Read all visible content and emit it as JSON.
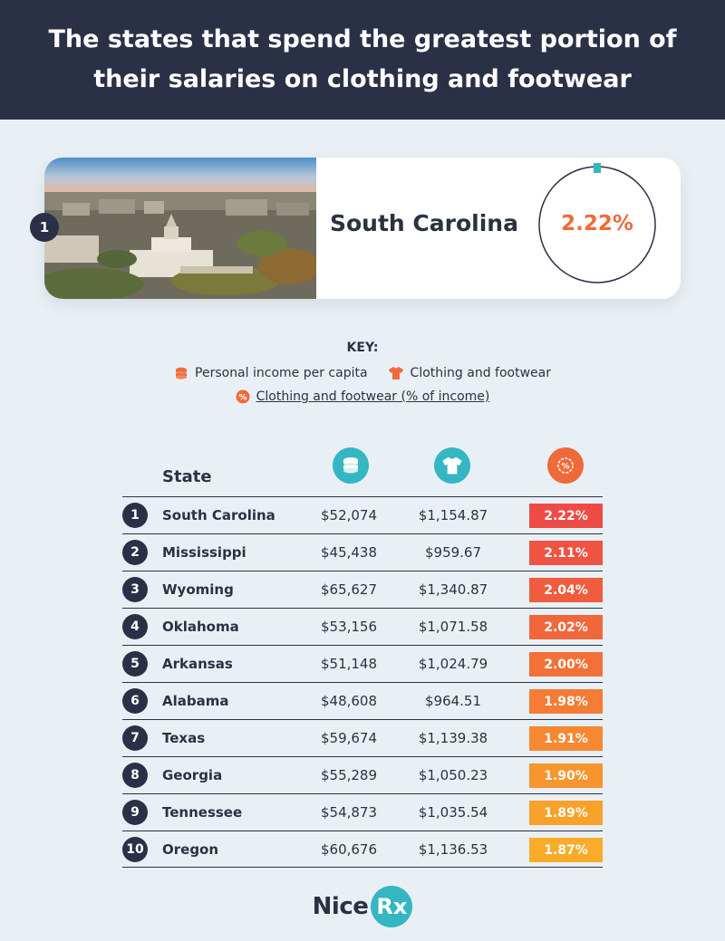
{
  "title": "The states that spend the greatest portion of their salaries on clothing and footwear",
  "feature": {
    "rank": "1",
    "state": "South Carolina",
    "percent_label": "2.22%",
    "percent_value": 2.22
  },
  "key": {
    "title": "KEY:",
    "income": "Personal income per capita",
    "clothing": "Clothing and footwear",
    "percent": "Clothing and footwear (% of income)"
  },
  "columns": {
    "state": "State"
  },
  "colors": {
    "navy": "#2a3147",
    "teal": "#34b6c3",
    "orange": "#ef6a3a"
  },
  "chart_data": {
    "type": "table",
    "columns": [
      "State",
      "Personal income per capita",
      "Clothing and footwear",
      "Clothing and footwear (% of income)"
    ],
    "rows": [
      {
        "rank": "1",
        "state": "South Carolina",
        "income": "$52,074",
        "clothing": "$1,154.87",
        "percent": "2.22%",
        "color": "#ee4b47"
      },
      {
        "rank": "2",
        "state": "Mississippi",
        "income": "$45,438",
        "clothing": "$959.67",
        "percent": "2.11%",
        "color": "#ef5343"
      },
      {
        "rank": "3",
        "state": "Wyoming",
        "income": "$65,627",
        "clothing": "$1,340.87",
        "percent": "2.04%",
        "color": "#f05c3f"
      },
      {
        "rank": "4",
        "state": "Oklahoma",
        "income": "$53,156",
        "clothing": "$1,071.58",
        "percent": "2.02%",
        "color": "#f2663c"
      },
      {
        "rank": "5",
        "state": "Arkansas",
        "income": "$51,148",
        "clothing": "$1,024.79",
        "percent": "2.00%",
        "color": "#f37138"
      },
      {
        "rank": "6",
        "state": "Alabama",
        "income": "$48,608",
        "clothing": "$964.51",
        "percent": "1.98%",
        "color": "#f47c35"
      },
      {
        "rank": "7",
        "state": "Texas",
        "income": "$59,674",
        "clothing": "$1,139.38",
        "percent": "1.91%",
        "color": "#f68832"
      },
      {
        "rank": "8",
        "state": "Georgia",
        "income": "$55,289",
        "clothing": "$1,050.23",
        "percent": "1.90%",
        "color": "#f7952e"
      },
      {
        "rank": "9",
        "state": "Tennessee",
        "income": "$54,873",
        "clothing": "$1,035.54",
        "percent": "1.89%",
        "color": "#f8a12b"
      },
      {
        "rank": "10",
        "state": "Oregon",
        "income": "$60,676",
        "clothing": "$1,136.53",
        "percent": "1.87%",
        "color": "#f9ac29"
      }
    ]
  },
  "logo": {
    "text": "Nice",
    "badge": "Rx"
  }
}
